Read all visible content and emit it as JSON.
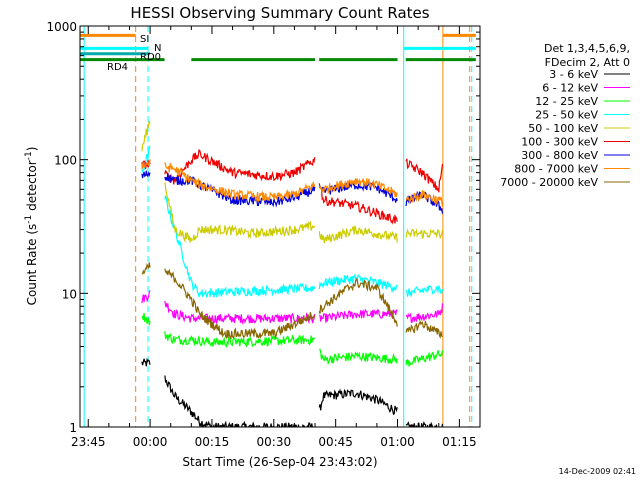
{
  "chart_data": {
    "type": "line",
    "title": "HESSI Observing Summary Count Rates",
    "xlabel": "Start Time (26-Sep-04 23:43:02)",
    "ylabel_main": "Count Rate (s",
    "ylabel_sup1": "-1",
    "ylabel_mid": " detector",
    "ylabel_sup2": "-1",
    "ylabel_end": ")",
    "y_scale": "log",
    "ylim": [
      1,
      1000
    ],
    "xlim_minutes": [
      -17,
      80
    ],
    "x_tick_labels": [
      "23:45",
      "00:00",
      "00:15",
      "00:30",
      "00:45",
      "01:00",
      "01:15"
    ],
    "x_tick_minutes": [
      -15,
      0,
      15,
      30,
      45,
      60,
      75
    ],
    "y_tick_labels": [
      "1",
      "10",
      "100",
      "1000"
    ],
    "y_tick_values": [
      1,
      10,
      100,
      1000
    ],
    "legend_header": [
      "Det 1,3,4,5,6,9,",
      "FDecim 2, Att 0"
    ],
    "legend_position": "right",
    "series": [
      {
        "name": "3 - 6 keV",
        "color": "#000000"
      },
      {
        "name": "6 - 12 keV",
        "color": "#ff00ff"
      },
      {
        "name": "12 - 25 keV",
        "color": "#00ff00"
      },
      {
        "name": "25 - 50 keV",
        "color": "#00ffff"
      },
      {
        "name": "50 - 100 keV",
        "color": "#cccc00"
      },
      {
        "name": "100 - 300 keV",
        "color": "#ee0000"
      },
      {
        "name": "300 - 800 keV",
        "color": "#0000dd"
      },
      {
        "name": "800 - 7000 keV",
        "color": "#ff8800"
      },
      {
        "name": "7000 - 20000 keV",
        "color": "#886600"
      }
    ],
    "flag_bars": [
      {
        "label": "SI",
        "color": "#ff8800",
        "value": 850,
        "segments": [
          [
            -17,
            -3.5
          ],
          [
            71,
            79
          ]
        ]
      },
      {
        "label": "N",
        "color": "#00ffff",
        "value": 680,
        "segments": [
          [
            -17,
            -0.5
          ],
          [
            61.5,
            79
          ]
        ]
      },
      {
        "label": "RD0",
        "color": "#00aaaa",
        "value": 620,
        "segments": [
          [
            -17,
            0
          ]
        ]
      },
      {
        "label": "RD4",
        "color": "#008800",
        "value": 560,
        "segments": [
          [
            -17,
            3.5
          ],
          [
            10,
            40
          ],
          [
            41,
            60
          ],
          [
            62,
            79
          ]
        ]
      }
    ],
    "vertical_markers": [
      {
        "minute": -16,
        "color": "#00ffff",
        "style": "solid"
      },
      {
        "minute": -3.5,
        "color": "#ff8800",
        "style": "dashed"
      },
      {
        "minute": -0.5,
        "color": "#00ffff",
        "style": "dashed"
      },
      {
        "minute": 61.5,
        "color": "#00ffff",
        "style": "solid"
      },
      {
        "minute": 71,
        "color": "#ff8800",
        "style": "solid"
      },
      {
        "minute": 77.5,
        "color": "#ff8800",
        "style": "dashed"
      },
      {
        "minute": 78,
        "color": "#00ffff",
        "style": "dashed"
      }
    ]
  },
  "footer": {
    "timestamp": "14-Dec-2009 02:41"
  }
}
